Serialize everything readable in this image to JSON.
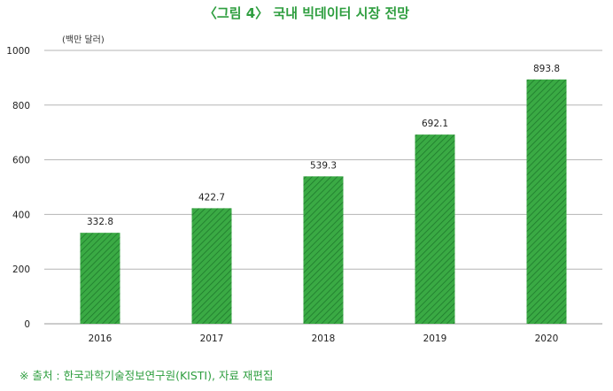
{
  "title": "〈그림 4〉 국내 빅데이터 시장 전망",
  "unit_label": "(백만 달러)",
  "source": "※ 출처 : 한국과학기술정보연구원(KISTI), 자료 재편집",
  "colors": {
    "bar": "#3aaa44",
    "hatch": "#1e7a2c",
    "title": "#2e9e3f",
    "grid": "#b5b5b5"
  },
  "chart_data": {
    "type": "bar",
    "title": "〈그림 4〉 국내 빅데이터 시장 전망",
    "ylabel": "(백만 달러)",
    "categories": [
      "2016",
      "2017",
      "2018",
      "2019",
      "2020"
    ],
    "values": [
      332.8,
      422.7,
      539.3,
      692.1,
      893.8
    ],
    "value_labels": [
      "332.8",
      "422.7",
      "539.3",
      "692.1",
      "893.8"
    ],
    "ylim": [
      0,
      1000
    ],
    "yticks": [
      0,
      200,
      400,
      600,
      800,
      1000
    ],
    "grid": true,
    "legend": "none"
  }
}
